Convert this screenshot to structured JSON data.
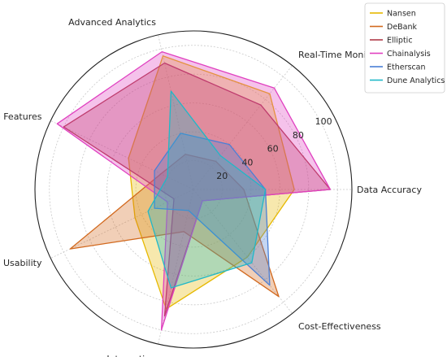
{
  "chart_data": {
    "type": "radar",
    "axes": [
      "Data Accuracy",
      "Real-Time Monitoring",
      "Advanced Analytics",
      "Compliance Features",
      "Usability",
      "Integration",
      "Cost-Effectiveness"
    ],
    "rlim": [
      0,
      110
    ],
    "rticks": [
      20,
      40,
      60,
      80,
      100
    ],
    "grid": true,
    "legend_position": "top-right",
    "series": [
      {
        "name": "Nansen",
        "color": "#e6b800",
        "values": [
          70,
          85,
          95,
          50,
          45,
          85,
          60
        ]
      },
      {
        "name": "DeBank",
        "color": "#d2691e",
        "values": [
          35,
          25,
          25,
          25,
          95,
          30,
          95
        ]
      },
      {
        "name": "Elliptic",
        "color": "#b03a48",
        "values": [
          95,
          75,
          90,
          100,
          15,
          90,
          10
        ]
      },
      {
        "name": "Chainalysis",
        "color": "#e040c0",
        "values": [
          95,
          90,
          98,
          105,
          20,
          100,
          10
        ]
      },
      {
        "name": "Etherscan",
        "color": "#4a7fd6",
        "values": [
          50,
          40,
          40,
          30,
          30,
          15,
          85
        ]
      },
      {
        "name": "Dune Analytics",
        "color": "#1fb8c8",
        "values": [
          50,
          30,
          70,
          20,
          35,
          70,
          65
        ]
      }
    ]
  }
}
